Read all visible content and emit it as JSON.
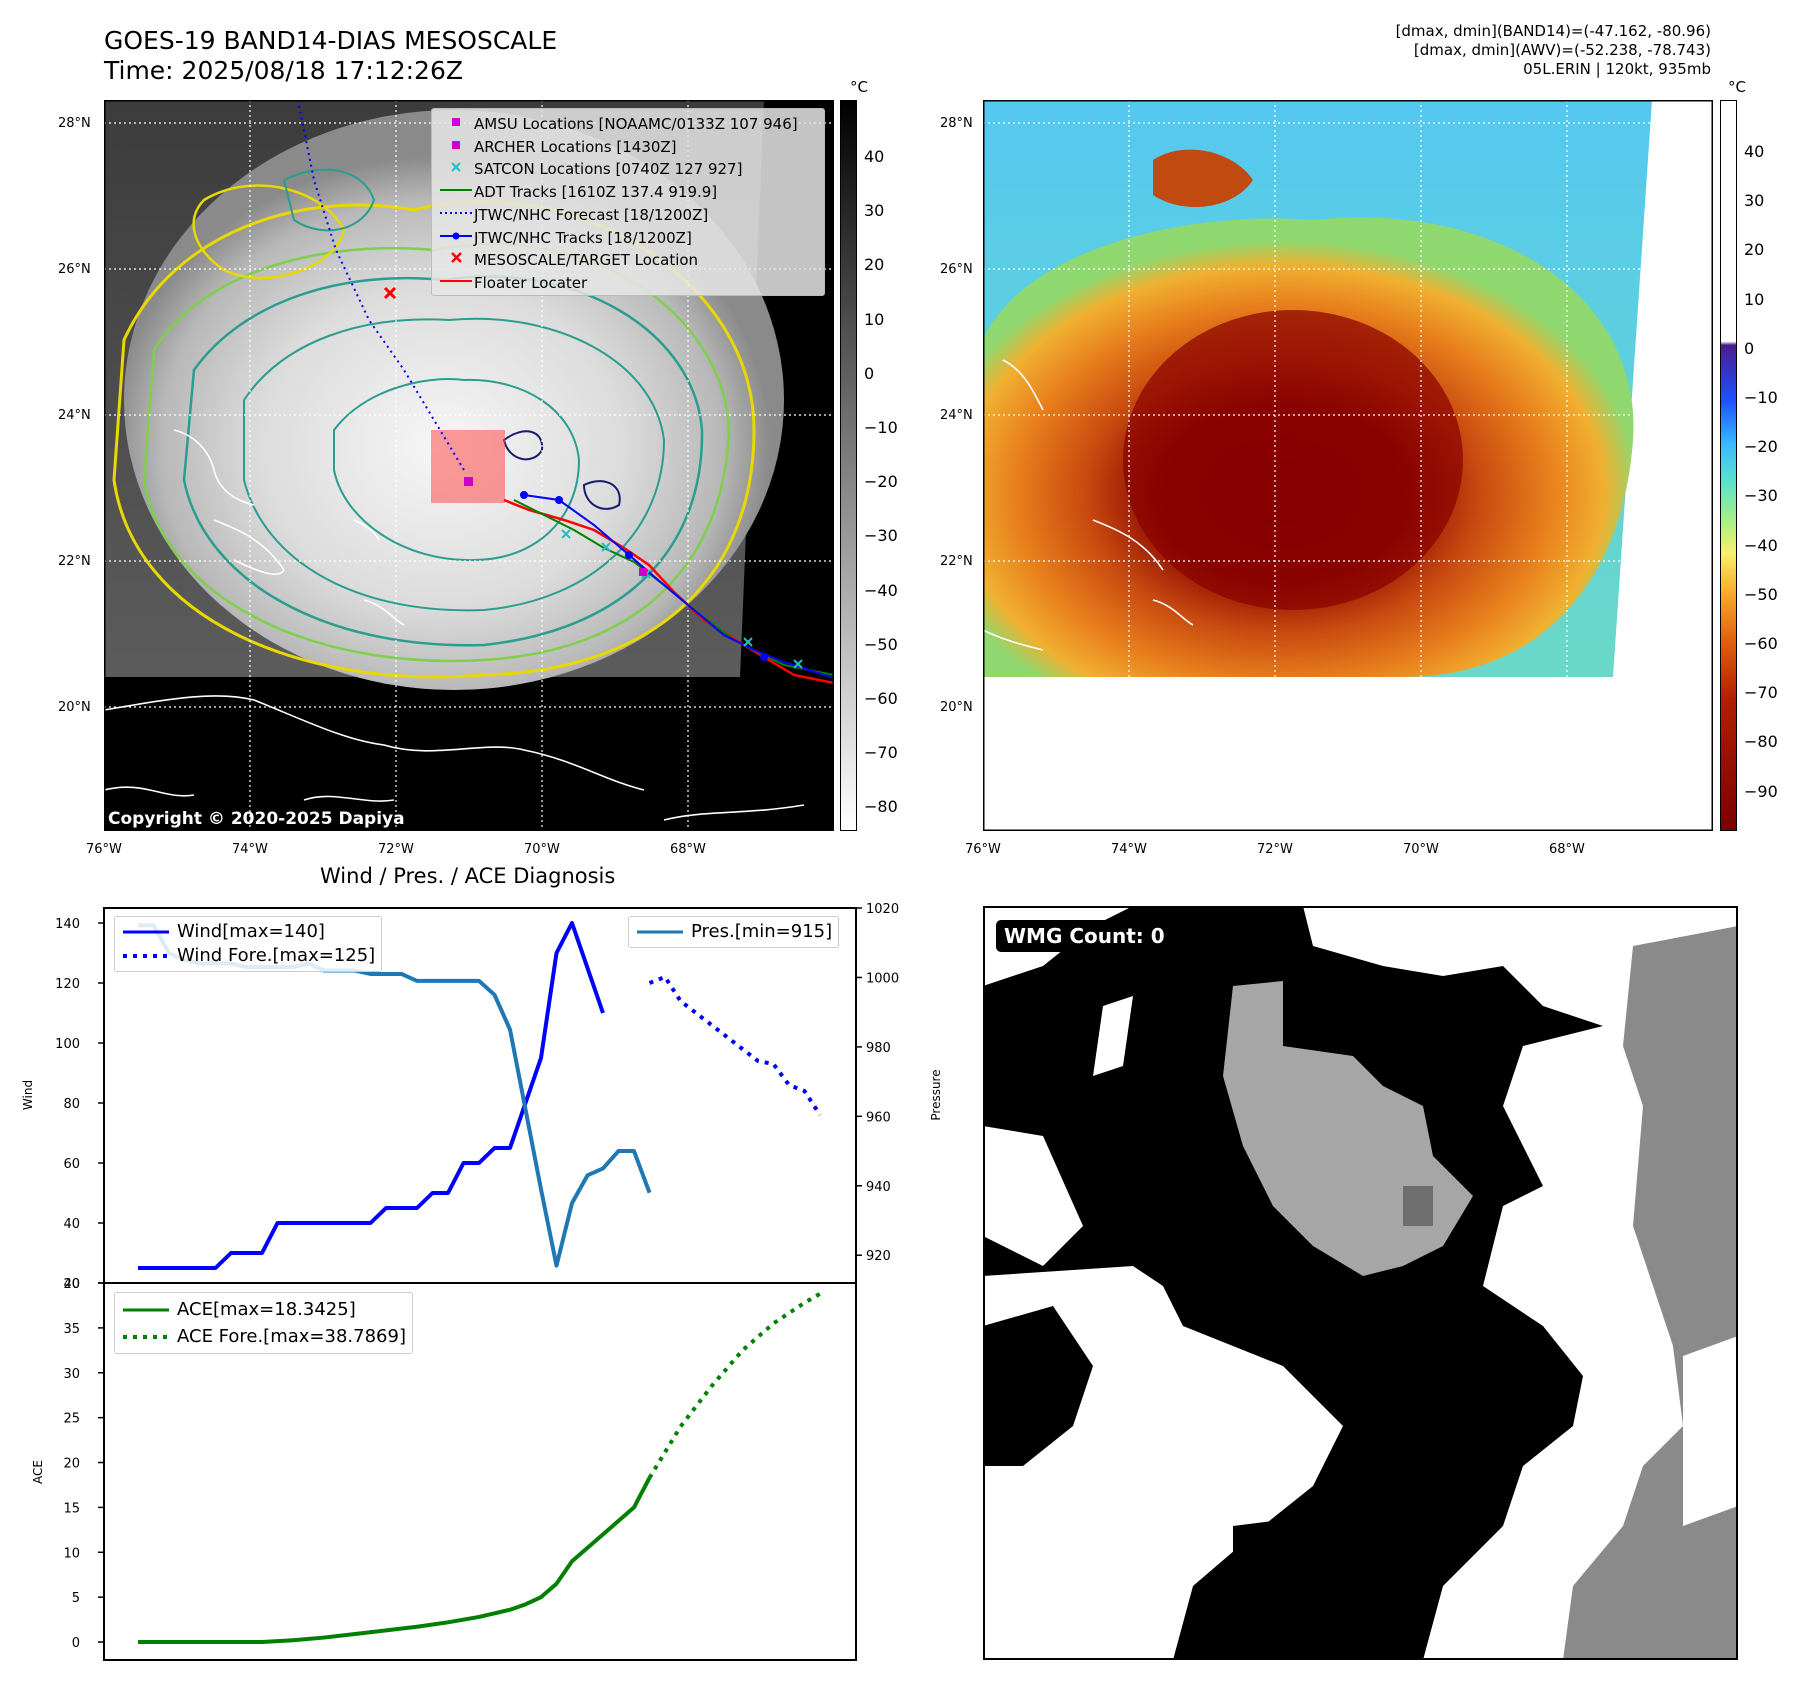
{
  "header": {
    "title_line1": "GOES-19 BAND14-DIAS MESOSCALE",
    "title_line2": "Time: 2025/08/18 17:12:26Z",
    "stats_line1": "[dmax, dmin](BAND14)=(-47.162, -80.96)",
    "stats_line2": "[dmax, dmin](AWV)=(-52.238, -78.743)",
    "stats_line3": "05L.ERIN | 120kt, 935mb"
  },
  "map_axes": {
    "lat_labels": [
      "28°N",
      "26°N",
      "24°N",
      "22°N",
      "20°N"
    ],
    "lon_labels": [
      "76°W",
      "74°W",
      "72°W",
      "70°W",
      "68°W"
    ],
    "copyright": "Copyright © 2020-2025 Dapiya"
  },
  "legend": {
    "items": [
      {
        "label": "AMSU Locations [NOAAMC/0133Z 107 946]",
        "color": "#cc00cc",
        "kind": "square"
      },
      {
        "label": "ARCHER Locations [1430Z]",
        "color": "#cc00cc",
        "kind": "square"
      },
      {
        "label": "SATCON Locations [0740Z 127 927]",
        "color": "#20c0c0",
        "kind": "x"
      },
      {
        "label": "ADT Tracks [1610Z 137.4 919.9]",
        "color": "#008000",
        "kind": "line"
      },
      {
        "label": "JTWC/NHC Forecast [18/1200Z]",
        "color": "#0000ff",
        "kind": "dotted"
      },
      {
        "label": "JTWC/NHC Tracks [18/1200Z]",
        "color": "#0000ff",
        "kind": "line-dot"
      },
      {
        "label": "MESOSCALE/TARGET Location",
        "color": "#ff0000",
        "kind": "redx"
      },
      {
        "label": "Floater Locater",
        "color": "#ff0000",
        "kind": "line"
      }
    ]
  },
  "colorbar_gray": {
    "unit": "°C",
    "ticks": [
      "40",
      "30",
      "20",
      "10",
      "0",
      "−10",
      "−20",
      "−30",
      "−40",
      "−50",
      "−60",
      "−70",
      "−80"
    ]
  },
  "colorbar_color": {
    "unit": "°C",
    "ticks": [
      "40",
      "30",
      "20",
      "10",
      "0",
      "−10",
      "−20",
      "−30",
      "−40",
      "−50",
      "−60",
      "−70",
      "−80",
      "−90"
    ]
  },
  "wmg": {
    "label": "WMG Count: 0"
  },
  "chart_data": [
    {
      "type": "line",
      "title": "Wind / Pres. / ACE Diagnosis",
      "ylabel": "Wind",
      "y2label": "Pressure",
      "ylim": [
        20,
        145
      ],
      "y2lim": [
        912,
        1020
      ],
      "yticks": [
        "140",
        "120",
        "100",
        "80",
        "60",
        "40",
        "20"
      ],
      "y2ticks": [
        "1020",
        "1000",
        "980",
        "960",
        "940",
        "920"
      ],
      "x_range": [
        0,
        44
      ],
      "series": [
        {
          "name": "Wind[max=140]",
          "axis": "left",
          "style": "solid",
          "color": "#0000ff",
          "x": [
            0,
            1,
            2,
            3,
            4,
            5,
            6,
            7,
            8,
            9,
            10,
            11,
            12,
            13,
            14,
            15,
            16,
            17,
            18,
            19,
            20,
            21,
            22,
            23,
            24,
            25,
            26,
            27,
            28,
            29,
            30
          ],
          "values": [
            25,
            25,
            25,
            25,
            25,
            25,
            30,
            30,
            30,
            40,
            40,
            40,
            40,
            40,
            40,
            40,
            45,
            45,
            45,
            50,
            50,
            60,
            60,
            65,
            65,
            80,
            95,
            130,
            140,
            125,
            110
          ]
        },
        {
          "name": "Wind Fore.[max=125]",
          "axis": "left",
          "style": "dotted",
          "color": "#0000ff",
          "x": [
            33,
            34,
            35,
            36,
            37,
            38,
            39,
            40,
            41,
            42,
            43,
            44
          ],
          "values": [
            120,
            122,
            114,
            110,
            106,
            102,
            98,
            94,
            93,
            86,
            84,
            76
          ]
        },
        {
          "name": "Pres.[min=915]",
          "axis": "right",
          "style": "solid",
          "color": "#1f77b4",
          "x": [
            0,
            1,
            2,
            3,
            4,
            5,
            6,
            7,
            8,
            9,
            10,
            11,
            12,
            13,
            14,
            15,
            16,
            17,
            18,
            19,
            20,
            21,
            22,
            23,
            24,
            25,
            26,
            27,
            28,
            29,
            30,
            31,
            32,
            33
          ],
          "values": [
            1015,
            1015,
            1007,
            1005,
            1004,
            1004,
            1004,
            1003,
            1003,
            1003,
            1003,
            1004,
            1002,
            1002,
            1002,
            1001,
            1001,
            1001,
            999,
            999,
            999,
            999,
            999,
            995,
            985,
            962,
            939,
            917,
            935,
            943,
            945,
            950,
            950,
            938
          ]
        }
      ]
    },
    {
      "type": "line",
      "ylabel": "ACE",
      "ylim": [
        -2,
        40
      ],
      "yticks": [
        "40",
        "35",
        "30",
        "25",
        "20",
        "15",
        "10",
        "5",
        "0"
      ],
      "x_range": [
        0,
        44
      ],
      "series": [
        {
          "name": "ACE[max=18.3425]",
          "style": "solid",
          "color": "#008000",
          "x": [
            0,
            4,
            8,
            10,
            12,
            14,
            16,
            18,
            20,
            22,
            24,
            25,
            26,
            27,
            28,
            30,
            32,
            33
          ],
          "values": [
            0,
            0,
            0,
            0.2,
            0.5,
            0.9,
            1.3,
            1.7,
            2.2,
            2.8,
            3.6,
            4.2,
            5.0,
            6.5,
            9.0,
            12.0,
            15.0,
            18.3
          ]
        },
        {
          "name": "ACE Fore.[max=38.7869]",
          "style": "dotted",
          "color": "#008000",
          "x": [
            33,
            35,
            37,
            39,
            41,
            43,
            44
          ],
          "values": [
            18.3,
            24.0,
            28.5,
            32.5,
            35.5,
            37.8,
            38.8
          ]
        }
      ]
    }
  ]
}
